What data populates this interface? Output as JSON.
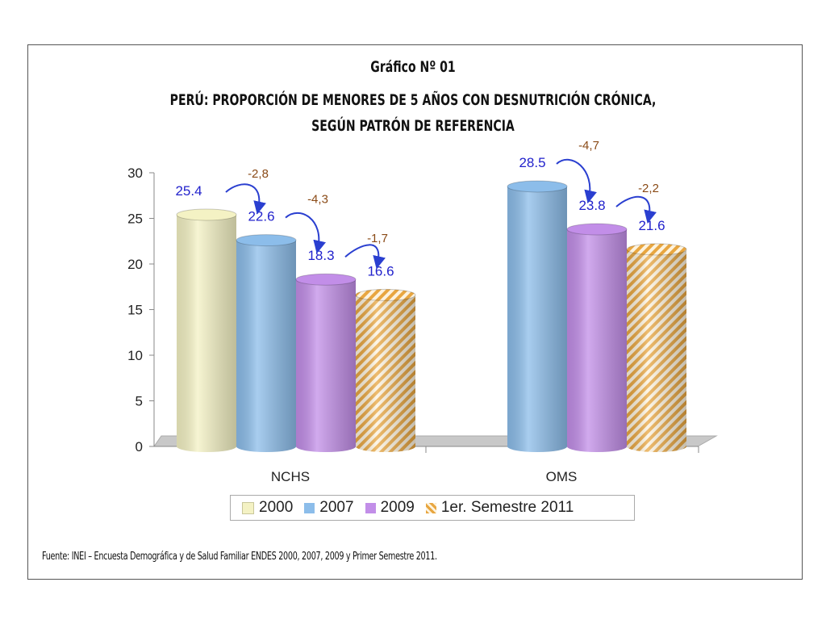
{
  "chart_data": {
    "type": "bar",
    "title": "Gráfico Nº 01",
    "subtitle": "PERÚ: PROPORCIÓN DE MENORES DE 5 AÑOS CON DESNUTRICIÓN CRÓNICA, SEGÚN PATRÓN DE REFERENCIA",
    "categories": [
      "NCHS",
      "OMS"
    ],
    "series": [
      {
        "name": "2000",
        "values": [
          25.4,
          null
        ],
        "labels": [
          "25.4",
          ""
        ],
        "color": "#f4f2c4"
      },
      {
        "name": "2007",
        "values": [
          22.6,
          28.5
        ],
        "labels": [
          "22.6",
          "28.5"
        ],
        "color": "#8cbdea"
      },
      {
        "name": "2009",
        "values": [
          18.3,
          23.8
        ],
        "labels": [
          "18.3",
          "23.8"
        ],
        "color": "#c28ee8"
      },
      {
        "name": "1er. Semestre 2011",
        "values": [
          16.6,
          21.6
        ],
        "labels": [
          "16.6",
          "21.6"
        ],
        "color": "#e8a640"
      }
    ],
    "differences": [
      {
        "category": "NCHS",
        "labels": [
          "-2,8",
          "-4,3",
          "-1,7"
        ]
      },
      {
        "category": "OMS",
        "labels": [
          "-4,7",
          "-2,2"
        ]
      }
    ],
    "ylim": [
      0,
      30
    ],
    "yticks": [
      "0",
      "5",
      "10",
      "15",
      "20",
      "25",
      "30"
    ],
    "xlabel": "",
    "ylabel": "",
    "grid": false,
    "legend_position": "bottom"
  },
  "source": "Fuente: INEI – Encuesta Demográfica y de Salud Familiar ENDES 2000, 2007, 2009 y Primer Semestre 2011."
}
